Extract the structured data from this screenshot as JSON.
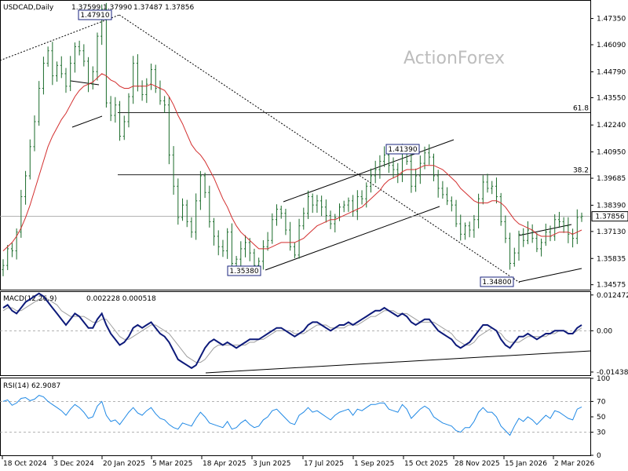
{
  "chart_data": {
    "type": "candlestick",
    "symbol": "USDCAD,Daily",
    "ohlc": [
      "1.37599",
      "1.37990",
      "1.37487",
      "1.37856"
    ],
    "watermark": "ActionForex",
    "current_price": 1.37856,
    "current_price_label": "1.37856",
    "y_ticks": [
      "1.47350",
      "1.46090",
      "1.44790",
      "1.43550",
      "1.42240",
      "1.40950",
      "1.39685",
      "1.38390",
      "1.37130",
      "1.35835",
      "1.34575"
    ],
    "x_ticks": [
      "18 Oct 2024",
      "3 Dec 2024",
      "20 Jan 2025",
      "5 Mar 2025",
      "18 Apr 2025",
      "3 Jun 2025",
      "17 Jul 2025",
      "1 Sep 2025",
      "15 Oct 2025",
      "28 Nov 2025",
      "15 Jan 2026",
      "2 Mar 2026"
    ],
    "ylim": [
      1.343,
      1.482
    ],
    "annotations": [
      {
        "label": "1.47910",
        "value": 1.4791
      },
      {
        "label": "1.41390",
        "value": 1.4139
      },
      {
        "label": "1.35380",
        "value": 1.3538
      },
      {
        "label": "1.34800",
        "value": 1.348
      }
    ],
    "fib_levels": [
      {
        "label": "61.8",
        "value": 1.4283
      },
      {
        "label": "38.2",
        "value": 1.3985
      }
    ],
    "close_series": [
      1.355,
      1.363,
      1.362,
      1.371,
      1.388,
      1.398,
      1.412,
      1.424,
      1.44,
      1.452,
      1.458,
      1.446,
      1.451,
      1.447,
      1.441,
      1.452,
      1.46,
      1.458,
      1.453,
      1.442,
      1.448,
      1.465,
      1.478,
      1.433,
      1.427,
      1.432,
      1.417,
      1.424,
      1.436,
      1.452,
      1.441,
      1.437,
      1.442,
      1.449,
      1.44,
      1.434,
      1.432,
      1.408,
      1.393,
      1.378,
      1.384,
      1.376,
      1.371,
      1.386,
      1.398,
      1.39,
      1.376,
      1.369,
      1.364,
      1.362,
      1.371,
      1.356,
      1.358,
      1.363,
      1.366,
      1.361,
      1.355,
      1.357,
      1.364,
      1.367,
      1.377,
      1.382,
      1.38,
      1.372,
      1.364,
      1.36,
      1.374,
      1.38,
      1.388,
      1.384,
      1.386,
      1.383,
      1.379,
      1.375,
      1.378,
      1.383,
      1.384,
      1.386,
      1.381,
      1.388,
      1.387,
      1.393,
      1.398,
      1.401,
      1.405,
      1.408,
      1.403,
      1.401,
      1.399,
      1.41,
      1.405,
      1.393,
      1.398,
      1.404,
      1.409,
      1.407,
      1.398,
      1.392,
      1.389,
      1.386,
      1.384,
      1.375,
      1.37,
      1.374,
      1.372,
      1.377,
      1.387,
      1.395,
      1.392,
      1.393,
      1.388,
      1.376,
      1.368,
      1.356,
      1.361,
      1.37,
      1.367,
      1.372,
      1.368,
      1.363,
      1.366,
      1.371,
      1.369,
      1.377,
      1.376,
      1.374,
      1.37,
      1.368,
      1.378,
      1.3786
    ],
    "ma_series": [
      1.362,
      1.364,
      1.366,
      1.369,
      1.373,
      1.378,
      1.384,
      1.391,
      1.398,
      1.405,
      1.412,
      1.417,
      1.421,
      1.425,
      1.428,
      1.432,
      1.436,
      1.439,
      1.441,
      1.442,
      1.443,
      1.445,
      1.447,
      1.446,
      1.444,
      1.443,
      1.441,
      1.44,
      1.44,
      1.441,
      1.441,
      1.441,
      1.441,
      1.442,
      1.441,
      1.44,
      1.439,
      1.436,
      1.432,
      1.427,
      1.423,
      1.418,
      1.413,
      1.41,
      1.408,
      1.405,
      1.401,
      1.397,
      1.392,
      1.387,
      1.383,
      1.378,
      1.374,
      1.371,
      1.369,
      1.367,
      1.365,
      1.363,
      1.363,
      1.363,
      1.364,
      1.365,
      1.366,
      1.366,
      1.366,
      1.366,
      1.367,
      1.368,
      1.37,
      1.372,
      1.374,
      1.375,
      1.376,
      1.377,
      1.377,
      1.378,
      1.379,
      1.38,
      1.381,
      1.382,
      1.383,
      1.385,
      1.387,
      1.389,
      1.391,
      1.394,
      1.396,
      1.397,
      1.398,
      1.4,
      1.401,
      1.401,
      1.401,
      1.402,
      1.403,
      1.403,
      1.403,
      1.402,
      1.401,
      1.399,
      1.397,
      1.395,
      1.392,
      1.39,
      1.388,
      1.386,
      1.385,
      1.385,
      1.385,
      1.386,
      1.386,
      1.385,
      1.383,
      1.38,
      1.377,
      1.375,
      1.374,
      1.373,
      1.372,
      1.37,
      1.369,
      1.369,
      1.369,
      1.37,
      1.371,
      1.371,
      1.371,
      1.37,
      1.371,
      1.372
    ],
    "macd": {
      "label": "MACD(12,26,9)",
      "values_label": "0.002228 0.000518",
      "y_ticks": [
        "0.012472",
        "0.00",
        "-0.014389"
      ],
      "ylim": [
        -0.0155,
        0.0135
      ],
      "main": [
        0.008,
        0.009,
        0.007,
        0.006,
        0.008,
        0.01,
        0.011,
        0.012,
        0.013,
        0.012,
        0.01,
        0.008,
        0.006,
        0.004,
        0.002,
        0.004,
        0.006,
        0.005,
        0.003,
        0.001,
        0.001,
        0.004,
        0.006,
        0.002,
        -0.001,
        -0.003,
        -0.005,
        -0.004,
        -0.002,
        0.001,
        0.002,
        0.001,
        0.002,
        0.003,
        0.001,
        -0.001,
        -0.002,
        -0.004,
        -0.007,
        -0.01,
        -0.011,
        -0.012,
        -0.013,
        -0.012,
        -0.009,
        -0.006,
        -0.004,
        -0.003,
        -0.004,
        -0.005,
        -0.004,
        -0.005,
        -0.006,
        -0.005,
        -0.004,
        -0.003,
        -0.003,
        -0.003,
        -0.002,
        -0.001,
        0.0,
        0.001,
        0.001,
        0.0,
        -0.001,
        -0.002,
        -0.001,
        0.0,
        0.002,
        0.003,
        0.003,
        0.002,
        0.001,
        0.0,
        0.001,
        0.002,
        0.002,
        0.003,
        0.002,
        0.003,
        0.004,
        0.005,
        0.006,
        0.007,
        0.007,
        0.008,
        0.007,
        0.006,
        0.005,
        0.006,
        0.005,
        0.003,
        0.002,
        0.003,
        0.004,
        0.004,
        0.002,
        0.0,
        -0.001,
        -0.002,
        -0.003,
        -0.005,
        -0.006,
        -0.005,
        -0.004,
        -0.002,
        0.0,
        0.002,
        0.002,
        0.001,
        0.0,
        -0.003,
        -0.005,
        -0.006,
        -0.004,
        -0.002,
        -0.002,
        -0.001,
        -0.002,
        -0.003,
        -0.002,
        -0.001,
        -0.001,
        0.0,
        0.0,
        0.0,
        -0.001,
        -0.001,
        0.001,
        0.002
      ],
      "signal": [
        0.007,
        0.008,
        0.008,
        0.007,
        0.007,
        0.008,
        0.009,
        0.01,
        0.011,
        0.011,
        0.011,
        0.01,
        0.009,
        0.007,
        0.006,
        0.005,
        0.005,
        0.005,
        0.005,
        0.004,
        0.003,
        0.003,
        0.004,
        0.004,
        0.002,
        0.0,
        -0.002,
        -0.003,
        -0.003,
        -0.002,
        -0.001,
        0.0,
        0.001,
        0.002,
        0.002,
        0.001,
        0.0,
        -0.001,
        -0.003,
        -0.005,
        -0.007,
        -0.009,
        -0.01,
        -0.011,
        -0.011,
        -0.01,
        -0.008,
        -0.006,
        -0.005,
        -0.005,
        -0.005,
        -0.005,
        -0.005,
        -0.005,
        -0.005,
        -0.004,
        -0.004,
        -0.003,
        -0.003,
        -0.002,
        -0.001,
        0.0,
        0.0,
        0.0,
        0.0,
        -0.001,
        -0.001,
        -0.001,
        0.0,
        0.001,
        0.002,
        0.002,
        0.002,
        0.001,
        0.001,
        0.001,
        0.001,
        0.002,
        0.002,
        0.002,
        0.003,
        0.004,
        0.005,
        0.005,
        0.006,
        0.007,
        0.007,
        0.007,
        0.006,
        0.006,
        0.006,
        0.005,
        0.004,
        0.003,
        0.003,
        0.003,
        0.003,
        0.002,
        0.001,
        0.0,
        -0.001,
        -0.003,
        -0.004,
        -0.005,
        -0.005,
        -0.004,
        -0.002,
        -0.001,
        0.0,
        0.001,
        0.0,
        -0.001,
        -0.003,
        -0.004,
        -0.004,
        -0.004,
        -0.003,
        -0.002,
        -0.002,
        -0.002,
        -0.002,
        -0.002,
        -0.001,
        -0.001,
        0.0,
        0.0,
        -0.001,
        -0.001,
        0.0,
        0.001
      ]
    },
    "rsi": {
      "label": "RSI(14) 62.9087",
      "y_ticks": [
        "100",
        "70",
        "50",
        "30",
        "0"
      ],
      "ylim": [
        0,
        100
      ],
      "levels": [
        70,
        30
      ],
      "values": [
        70,
        72,
        65,
        68,
        74,
        75,
        71,
        73,
        78,
        76,
        70,
        66,
        62,
        58,
        52,
        60,
        66,
        62,
        56,
        48,
        50,
        64,
        70,
        52,
        44,
        46,
        40,
        48,
        56,
        62,
        55,
        52,
        58,
        62,
        54,
        48,
        46,
        40,
        36,
        34,
        42,
        40,
        38,
        48,
        56,
        50,
        42,
        40,
        38,
        36,
        44,
        34,
        36,
        42,
        46,
        40,
        36,
        38,
        46,
        50,
        58,
        60,
        54,
        48,
        42,
        40,
        52,
        56,
        62,
        56,
        58,
        54,
        50,
        46,
        52,
        56,
        58,
        60,
        52,
        60,
        58,
        62,
        66,
        66,
        68,
        68,
        60,
        58,
        56,
        66,
        60,
        48,
        54,
        60,
        64,
        60,
        50,
        46,
        42,
        40,
        38,
        32,
        30,
        36,
        36,
        44,
        56,
        62,
        56,
        56,
        50,
        38,
        32,
        26,
        38,
        48,
        44,
        50,
        46,
        40,
        46,
        52,
        48,
        58,
        56,
        52,
        48,
        46,
        60,
        62.9
      ]
    }
  }
}
